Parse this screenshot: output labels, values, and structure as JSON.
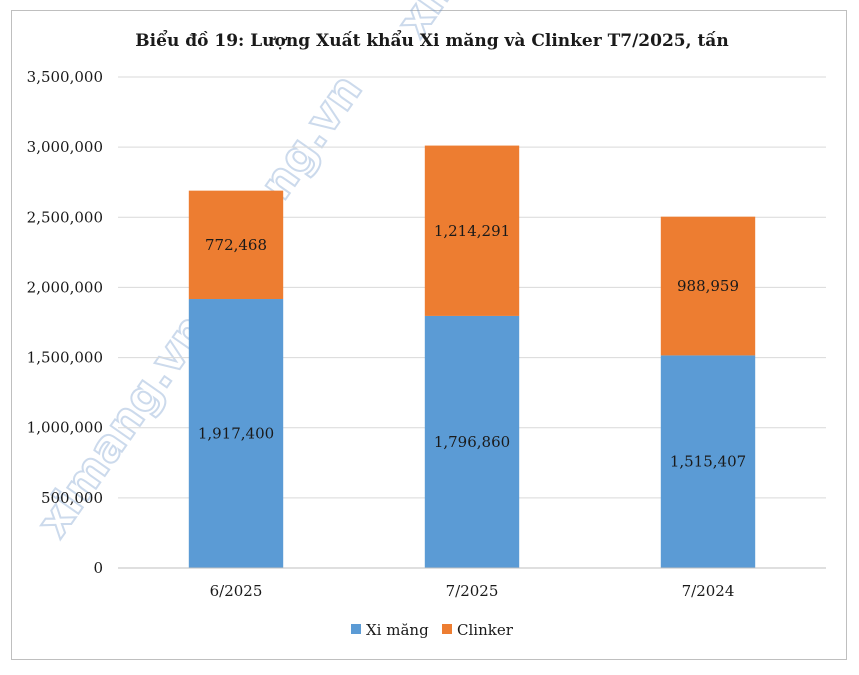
{
  "watermark": "ximang.vn",
  "colors": {
    "xi_mang": "#5b9bd5",
    "clinker": "#ed7d31",
    "grid": "#d9d9d9",
    "axis": "#bfbfbf"
  },
  "chart_data": {
    "type": "bar",
    "stacked": true,
    "title": "Biểu đồ 19: Lượng Xuất khẩu Xi măng và Clinker T7/2025, tấn",
    "categories": [
      "6/2025",
      "7/2025",
      "7/2024"
    ],
    "series": [
      {
        "name": "Xi măng",
        "values": [
          1917400,
          1796860,
          1515407
        ],
        "labels": [
          "1,917,400",
          "1,796,860",
          "1,515,407"
        ],
        "color": "#5b9bd5"
      },
      {
        "name": "Clinker",
        "values": [
          772468,
          1214291,
          988959
        ],
        "labels": [
          "772,468",
          "1,214,291",
          "988,959"
        ],
        "color": "#ed7d31"
      }
    ],
    "ylim": [
      0,
      3500000
    ],
    "yticks": [
      0,
      500000,
      1000000,
      1500000,
      2000000,
      2500000,
      3000000,
      3500000
    ],
    "ytick_labels": [
      "0",
      "500,000",
      "1,000,000",
      "1,500,000",
      "2,000,000",
      "2,500,000",
      "3,000,000",
      "3,500,000"
    ],
    "grid": true,
    "legend": "bottom"
  }
}
